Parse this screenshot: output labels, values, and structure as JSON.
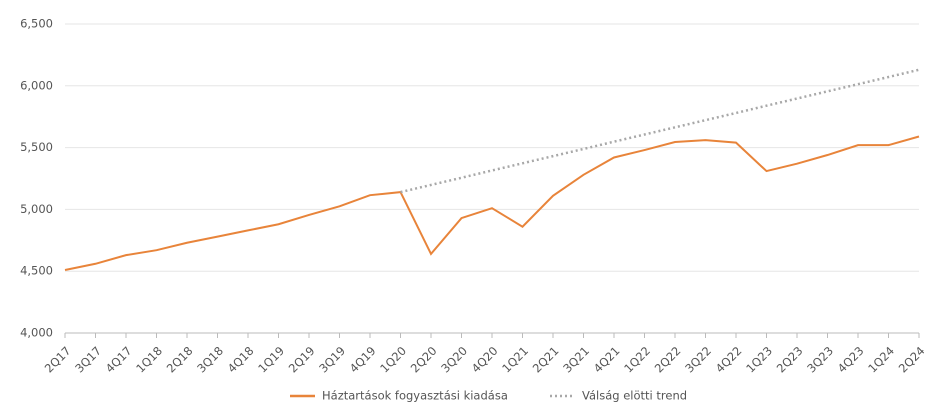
{
  "chart_data": {
    "type": "line",
    "categories": [
      "2Q17",
      "3Q17",
      "4Q17",
      "1Q18",
      "2Q18",
      "3Q18",
      "4Q18",
      "1Q19",
      "2Q19",
      "3Q19",
      "4Q19",
      "1Q20",
      "2Q20",
      "3Q20",
      "4Q20",
      "1Q21",
      "2Q21",
      "3Q21",
      "4Q21",
      "1Q22",
      "2Q22",
      "3Q22",
      "4Q22",
      "1Q23",
      "2Q23",
      "3Q23",
      "4Q23",
      "1Q24",
      "2Q24"
    ],
    "series": [
      {
        "name": "Háztartások fogyasztási kiadása",
        "color": "#e8843a",
        "style": "solid",
        "values": [
          4510,
          4560,
          4630,
          4670,
          4730,
          4780,
          4830,
          4880,
          4955,
          5025,
          5115,
          5140,
          4640,
          4930,
          5010,
          4860,
          5110,
          5280,
          5420,
          5480,
          5545,
          5560,
          5540,
          5310,
          5370,
          5440,
          5520,
          5520,
          5590
        ]
      },
      {
        "name": "Válság elötti trend",
        "color": "#a8a8a8",
        "style": "dotted",
        "values": [
          null,
          null,
          null,
          null,
          null,
          null,
          null,
          null,
          null,
          null,
          null,
          5140,
          5198,
          5256,
          5315,
          5373,
          5431,
          5489,
          5548,
          5606,
          5664,
          5722,
          5780,
          5839,
          5897,
          5955,
          6013,
          6071,
          6130
        ]
      }
    ],
    "ylim": [
      4000,
      6500
    ],
    "yticks": [
      {
        "value": 4000,
        "label": "4,000"
      },
      {
        "value": 4500,
        "label": "4,500"
      },
      {
        "value": 5000,
        "label": "5,000"
      },
      {
        "value": 5500,
        "label": "5,500"
      },
      {
        "value": 6000,
        "label": "6,000"
      },
      {
        "value": 6500,
        "label": "6,500"
      }
    ],
    "grid": true,
    "legend": "bottom"
  }
}
